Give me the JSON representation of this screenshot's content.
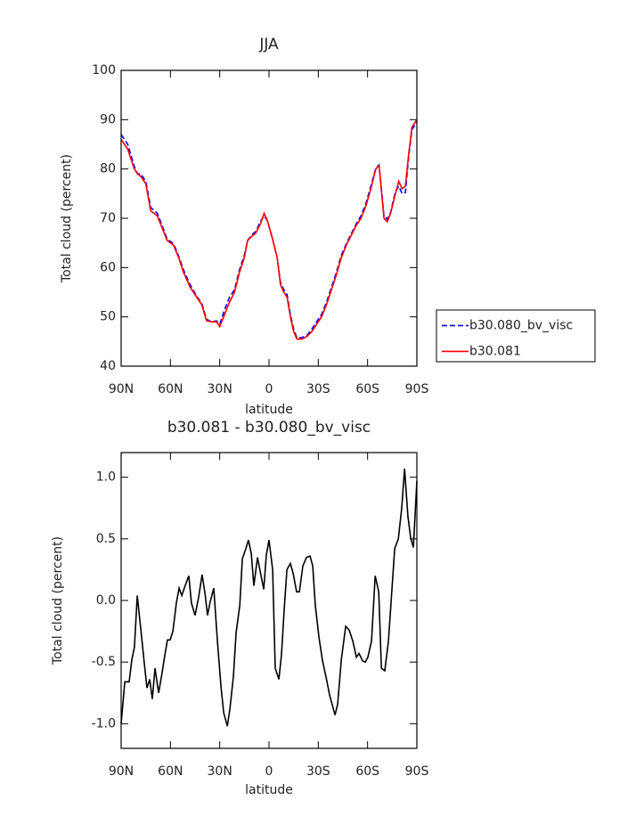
{
  "chart_data": [
    {
      "type": "line",
      "title": "JJA",
      "xlabel": "latitude",
      "ylabel": "Total cloud (percent)",
      "x": [
        90,
        86,
        82,
        80,
        78,
        75,
        72,
        68,
        65,
        62,
        58,
        55,
        52,
        48,
        44,
        41,
        38,
        35,
        32,
        30,
        27,
        24,
        21,
        18,
        15,
        13,
        10,
        8,
        5,
        3,
        1,
        -2,
        -5,
        -7,
        -9,
        -11,
        -13,
        -15,
        -17,
        -20,
        -23,
        -26,
        -29,
        -32,
        -35,
        -38,
        -41,
        -44,
        -47,
        -50,
        -53,
        -56,
        -59,
        -62,
        -65,
        -67,
        -70,
        -72,
        -74,
        -77,
        -79,
        -81,
        -83,
        -85,
        -87,
        -90
      ],
      "series": [
        {
          "name": "b30.080_bv_visc",
          "color": "#0000ff",
          "style": "dashed",
          "values": [
            87,
            85,
            80.5,
            79,
            79,
            77.5,
            72.2,
            71,
            68.5,
            65.8,
            64.8,
            62.3,
            59.5,
            56.5,
            54.2,
            52.8,
            49.5,
            49,
            49.2,
            48.5,
            51.5,
            54,
            55.5,
            59.5,
            62.5,
            65.5,
            66.8,
            67.3,
            69.5,
            70.5,
            69.5,
            66,
            62,
            57,
            55.5,
            54.5,
            50.5,
            47.5,
            45.7,
            45.8,
            46.2,
            47.5,
            49,
            50.5,
            53,
            56,
            59,
            62.5,
            64.8,
            66.8,
            68.8,
            70.5,
            73,
            76.5,
            80.2,
            80.8,
            70.5,
            69.8,
            71.2,
            75.5,
            76.5,
            75,
            75.2,
            82.5,
            88,
            89.5
          ]
        },
        {
          "name": "b30.081",
          "color": "#ff0000",
          "style": "solid",
          "values": [
            86,
            84,
            80,
            79,
            78.5,
            77,
            71.5,
            70.5,
            68,
            65.5,
            64.5,
            62,
            59,
            56,
            54,
            52.5,
            49.2,
            49,
            49,
            48,
            50.5,
            53,
            55,
            59,
            62,
            65.5,
            66.5,
            67,
            69,
            71,
            69.5,
            66,
            62,
            56.5,
            55,
            54,
            50,
            47,
            45.5,
            45.5,
            46,
            47,
            48.5,
            50,
            52.5,
            55.5,
            58.5,
            62,
            64.5,
            66.5,
            68.5,
            70,
            72.5,
            76,
            80,
            80.7,
            70,
            69.3,
            71,
            75,
            77.5,
            76,
            76.5,
            83,
            88.5,
            90
          ]
        }
      ],
      "xlim": [
        90,
        -90
      ],
      "xticks": [
        {
          "value": 90,
          "label": "90N"
        },
        {
          "value": 60,
          "label": "60N"
        },
        {
          "value": 30,
          "label": "30N"
        },
        0,
        {
          "value": -30,
          "label": "30S"
        },
        {
          "value": -60,
          "label": "60S"
        },
        {
          "value": -90,
          "label": "90S"
        }
      ],
      "ylim": [
        40,
        100
      ],
      "yticks": [
        40,
        50,
        60,
        70,
        80,
        90,
        100
      ],
      "grid": false,
      "legend": "right"
    },
    {
      "type": "line",
      "title": "b30.081 - b30.080_bv_visc",
      "xlabel": "latitude",
      "ylabel": "Total cloud (percent)",
      "x": [
        90,
        87.8,
        85.1,
        83.5,
        81.9,
        80.2,
        78.1,
        75.9,
        74.3,
        72.6,
        71,
        69.4,
        67.2,
        65.1,
        63.4,
        61.8,
        60.2,
        58.5,
        56.4,
        54.7,
        53.1,
        51,
        48.8,
        47.2,
        45,
        42.8,
        40.7,
        39,
        37.4,
        35.8,
        33.6,
        31.4,
        29.2,
        27.6,
        25.4,
        23.8,
        21.7,
        20,
        17.8,
        16.2,
        14.1,
        12.5,
        10.8,
        9.2,
        7,
        5.4,
        3.2,
        1.6,
        0,
        -2.2,
        -3.8,
        -6,
        -7.6,
        -9.2,
        -10.9,
        -13,
        -14.7,
        -16.8,
        -18.5,
        -20.6,
        -22.8,
        -25,
        -26.6,
        -28.2,
        -30.4,
        -32.6,
        -34.7,
        -36.9,
        -40.2,
        -41.8,
        -44,
        -46.7,
        -48.8,
        -51,
        -53.2,
        -54.8,
        -57,
        -58.6,
        -60.2,
        -62.4,
        -64.6,
        -66.8,
        -68.4,
        -70.5,
        -72.7,
        -74.9,
        -76.5,
        -78.7,
        -80.8,
        -82.5,
        -84.6,
        -86.2,
        -87.9,
        -90
      ],
      "series": [
        {
          "color": "#000000",
          "style": "solid",
          "values": [
            -1,
            -0.66,
            -0.66,
            -0.48,
            -0.38,
            0.04,
            -0.22,
            -0.51,
            -0.71,
            -0.64,
            -0.8,
            -0.55,
            -0.75,
            -0.59,
            -0.44,
            -0.32,
            -0.32,
            -0.25,
            -0.02,
            0.1,
            0.04,
            0.12,
            0.2,
            -0.02,
            -0.12,
            0.03,
            0.21,
            0.06,
            -0.12,
            -0.01,
            0.1,
            -0.33,
            -0.7,
            -0.91,
            -1.02,
            -0.88,
            -0.62,
            -0.26,
            -0.04,
            0.34,
            0.42,
            0.49,
            0.38,
            0.12,
            0.35,
            0.24,
            0.09,
            0.37,
            0.49,
            0.25,
            -0.55,
            -0.64,
            -0.44,
            -0.08,
            0.25,
            0.3,
            0.22,
            0.07,
            0.07,
            0.28,
            0.35,
            0.36,
            0.28,
            -0.04,
            -0.3,
            -0.49,
            -0.62,
            -0.77,
            -0.93,
            -0.84,
            -0.48,
            -0.21,
            -0.24,
            -0.33,
            -0.46,
            -0.43,
            -0.49,
            -0.5,
            -0.46,
            -0.33,
            0.2,
            0.07,
            -0.55,
            -0.57,
            -0.33,
            0.1,
            0.42,
            0.5,
            0.75,
            1.07,
            0.68,
            0.51,
            0.43,
            0.97
          ]
        }
      ],
      "xlim": [
        90,
        -90
      ],
      "xticks": [
        {
          "value": 90,
          "label": "90N"
        },
        {
          "value": 60,
          "label": "60N"
        },
        {
          "value": 30,
          "label": "30N"
        },
        0,
        {
          "value": -30,
          "label": "30S"
        },
        {
          "value": -60,
          "label": "60S"
        },
        {
          "value": -90,
          "label": "90S"
        }
      ],
      "ylim": [
        -1.2,
        1.2
      ],
      "yticks": [
        {
          "value": -1,
          "label": "-1.0"
        },
        -0.5,
        {
          "value": 0,
          "label": "0.0"
        },
        0.5,
        {
          "value": 1,
          "label": "1.0"
        }
      ],
      "grid": false
    }
  ]
}
